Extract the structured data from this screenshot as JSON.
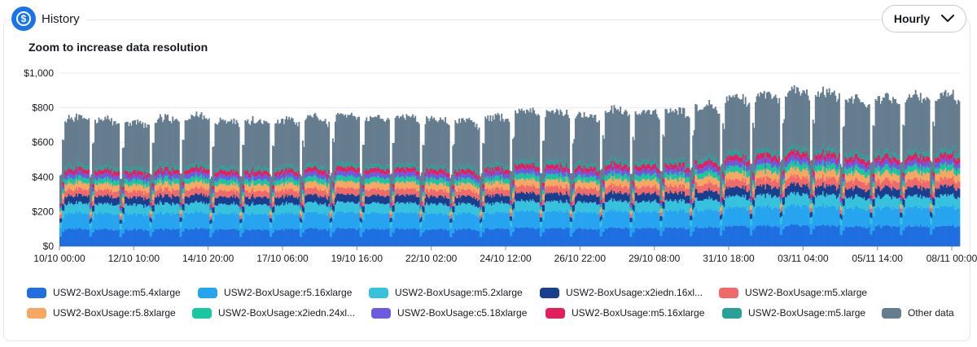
{
  "header": {
    "title": "History",
    "icon": "dollar-icon",
    "interval_label": "Hourly"
  },
  "subtitle": "Zoom to increase data resolution",
  "chart_data": {
    "type": "area",
    "stacked": true,
    "ylim": [
      0,
      1000
    ],
    "y_ticks": [
      "$0",
      "$200",
      "$400",
      "$600",
      "$800",
      "$1,000"
    ],
    "x_ticks": [
      "10/10 00:00",
      "12/10 10:00",
      "14/10 20:00",
      "17/10 06:00",
      "19/10 16:00",
      "22/10 02:00",
      "24/10 12:00",
      "26/10 22:00",
      "29/10 08:00",
      "31/10 18:00",
      "03/11 04:00",
      "05/11 14:00",
      "08/11 00:00"
    ],
    "x_range": [
      "10/10 00:00",
      "08/11 23:00"
    ],
    "grid": true,
    "legend_position": "bottom",
    "total_daily_profile_approx": [
      750,
      740,
      720,
      745,
      760,
      730,
      735,
      730,
      745,
      760,
      750,
      755,
      745,
      730,
      750,
      790,
      780,
      760,
      790,
      785,
      790,
      820,
      860,
      880,
      900,
      890,
      850,
      860,
      870,
      880
    ],
    "series": [
      {
        "name": "USW2-BoxUsage:m5.4xlarge",
        "color": "#1f6fe0",
        "approx_share": 0.135
      },
      {
        "name": "USW2-BoxUsage:r5.16xlarge",
        "color": "#27a4f0",
        "approx_share": 0.125
      },
      {
        "name": "USW2-BoxUsage:m5.2xlarge",
        "color": "#36c2dd",
        "approx_share": 0.075
      },
      {
        "name": "USW2-BoxUsage:x2iedn.16xl...",
        "color": "#1b3f8f",
        "approx_share": 0.06
      },
      {
        "name": "USW2-BoxUsage:m5.xlarge",
        "color": "#f06a6a",
        "approx_share": 0.05
      },
      {
        "name": "USW2-BoxUsage:r5.8xlarge",
        "color": "#f7a761",
        "approx_share": 0.05
      },
      {
        "name": "USW2-BoxUsage:x2iedn.24xl...",
        "color": "#19c7a0",
        "approx_share": 0.04
      },
      {
        "name": "USW2-BoxUsage:c5.18xlarge",
        "color": "#6a5be0",
        "approx_share": 0.035
      },
      {
        "name": "USW2-BoxUsage:m5.16xlarge",
        "color": "#e41f5e",
        "approx_share": 0.035
      },
      {
        "name": "USW2-BoxUsage:m5.large",
        "color": "#2aa198",
        "approx_share": 0.03
      },
      {
        "name": "Other data",
        "color": "#657d8f",
        "approx_share": 0.365
      }
    ]
  },
  "legend": [
    {
      "label": "USW2-BoxUsage:m5.4xlarge",
      "color": "#1f6fe0"
    },
    {
      "label": "USW2-BoxUsage:r5.16xlarge",
      "color": "#27a4f0"
    },
    {
      "label": "USW2-BoxUsage:m5.2xlarge",
      "color": "#36c2dd"
    },
    {
      "label": "USW2-BoxUsage:x2iedn.16xl...",
      "color": "#1b3f8f"
    },
    {
      "label": "USW2-BoxUsage:m5.xlarge",
      "color": "#f06a6a"
    },
    {
      "label": "USW2-BoxUsage:r5.8xlarge",
      "color": "#f7a761"
    },
    {
      "label": "USW2-BoxUsage:x2iedn.24xl...",
      "color": "#19c7a0"
    },
    {
      "label": "USW2-BoxUsage:c5.18xlarge",
      "color": "#6a5be0"
    },
    {
      "label": "USW2-BoxUsage:m5.16xlarge",
      "color": "#e41f5e"
    },
    {
      "label": "USW2-BoxUsage:m5.large",
      "color": "#2aa198"
    },
    {
      "label": "Other data",
      "color": "#657d8f"
    }
  ]
}
